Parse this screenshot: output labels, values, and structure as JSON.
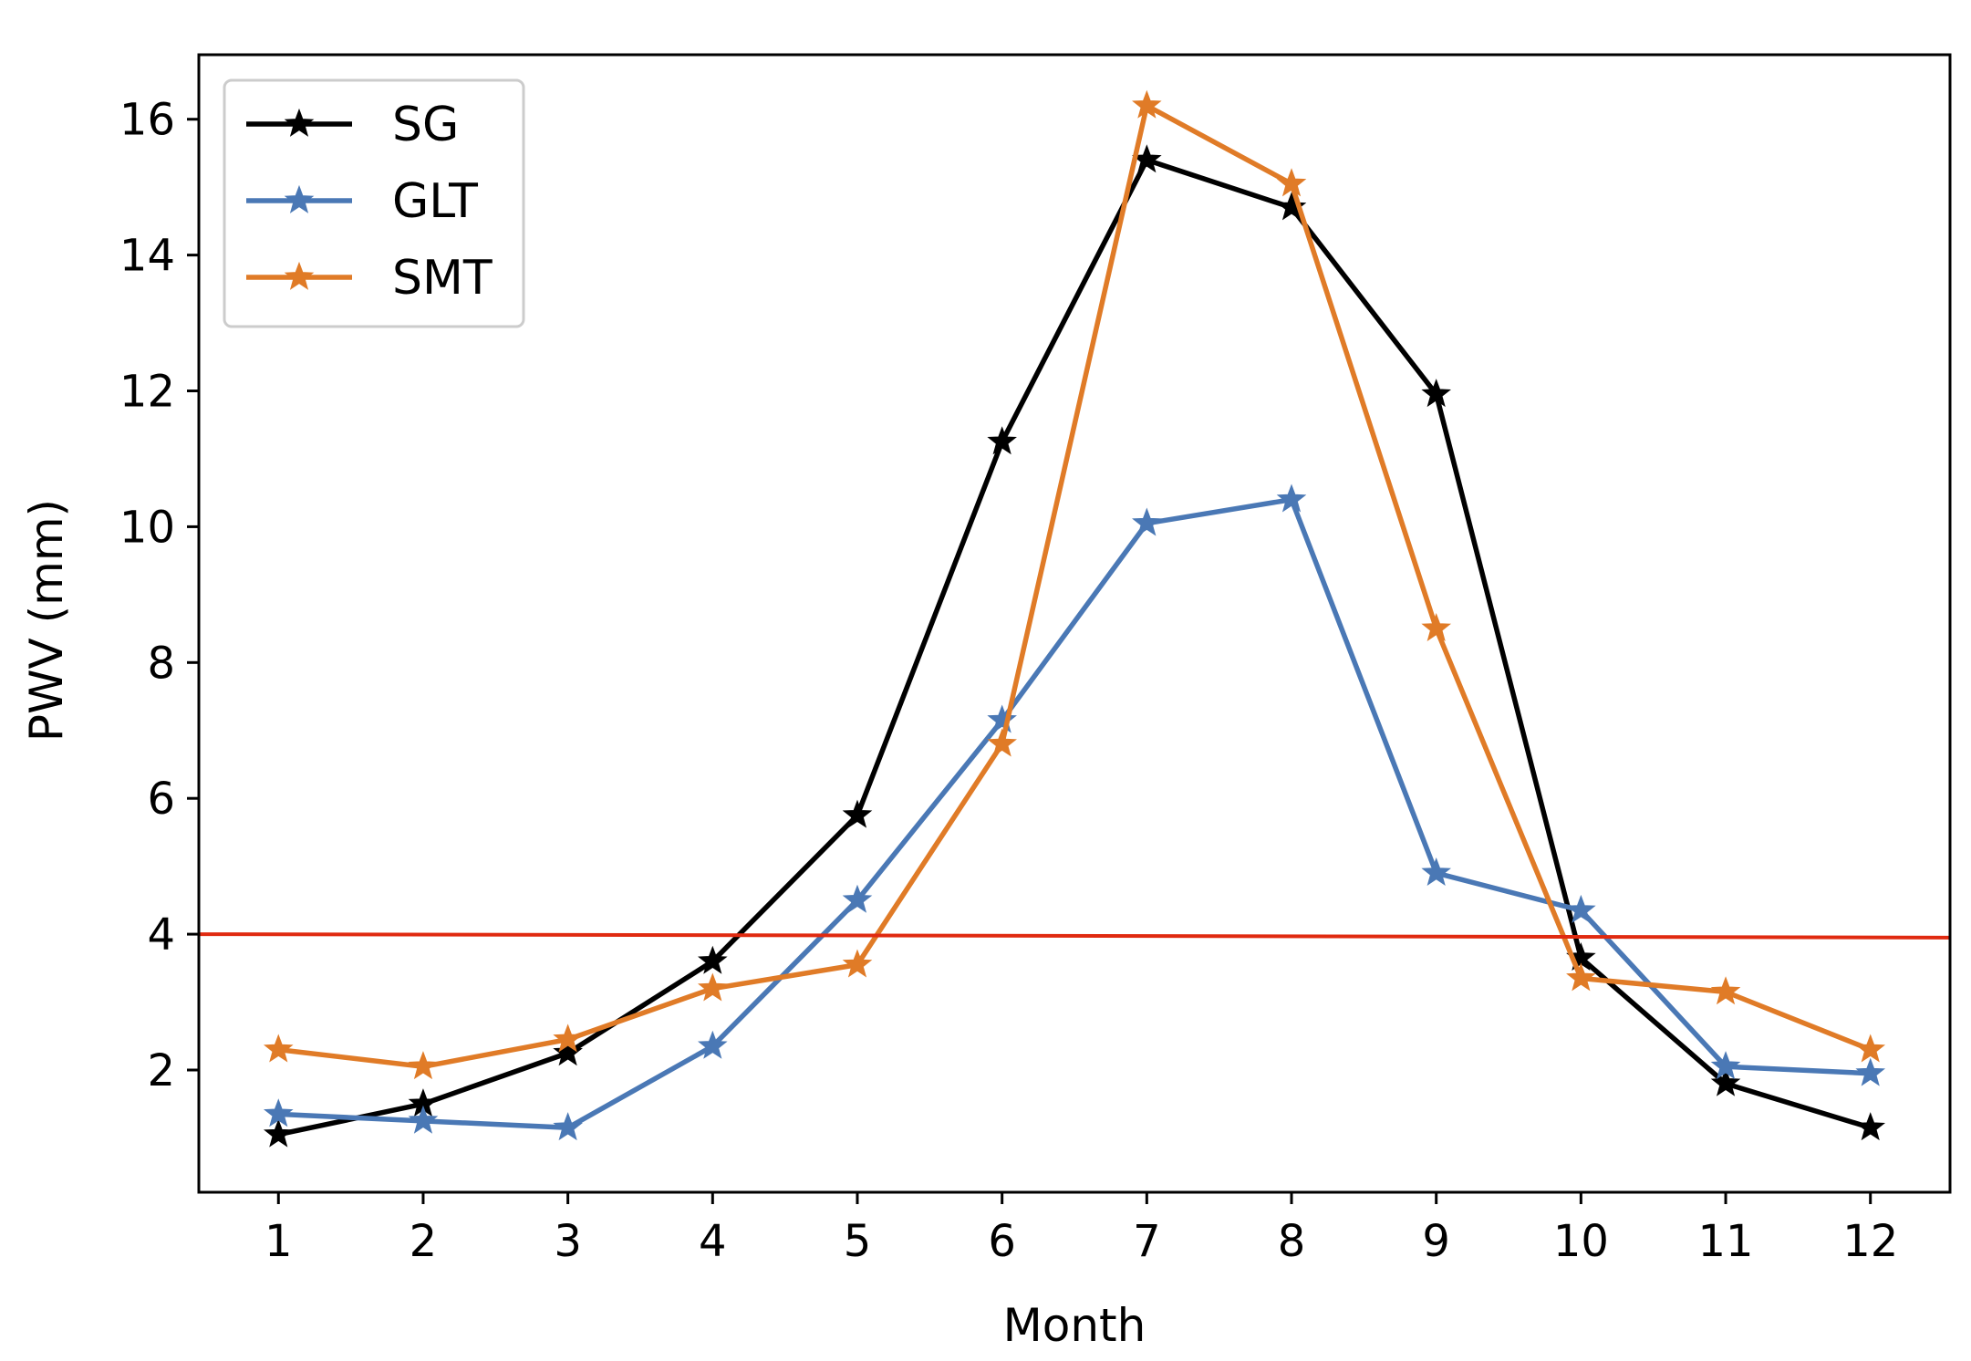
{
  "chart_data": {
    "type": "line",
    "xlabel": "Month",
    "ylabel": "PWV (mm)",
    "x": [
      1,
      2,
      3,
      4,
      5,
      6,
      7,
      8,
      9,
      10,
      11,
      12
    ],
    "xlim": [
      0.45,
      12.55
    ],
    "ylim": [
      0.2,
      16.95
    ],
    "xticks": [
      1,
      2,
      3,
      4,
      5,
      6,
      7,
      8,
      9,
      10,
      11,
      12
    ],
    "yticks": [
      2,
      4,
      6,
      8,
      10,
      12,
      14,
      16
    ],
    "legend_position": "top-left",
    "grid": false,
    "marker": "star",
    "series": [
      {
        "name": "SG",
        "color": "#000000",
        "values": [
          1.05,
          1.5,
          2.25,
          3.6,
          5.75,
          11.25,
          15.4,
          14.7,
          11.95,
          3.65,
          1.8,
          1.15
        ]
      },
      {
        "name": "GLT",
        "color": "#4a78b5",
        "values": [
          1.35,
          1.25,
          1.15,
          2.35,
          4.5,
          7.15,
          10.05,
          10.4,
          4.9,
          4.35,
          2.05,
          1.95
        ]
      },
      {
        "name": "SMT",
        "color": "#e07b27",
        "values": [
          2.3,
          2.05,
          2.45,
          3.2,
          3.55,
          6.8,
          16.2,
          15.05,
          8.5,
          3.35,
          3.15,
          2.3
        ]
      }
    ],
    "reference_lines": [
      {
        "color": "#e02a10",
        "y_start": 4.0,
        "y_end": 3.95
      }
    ]
  }
}
